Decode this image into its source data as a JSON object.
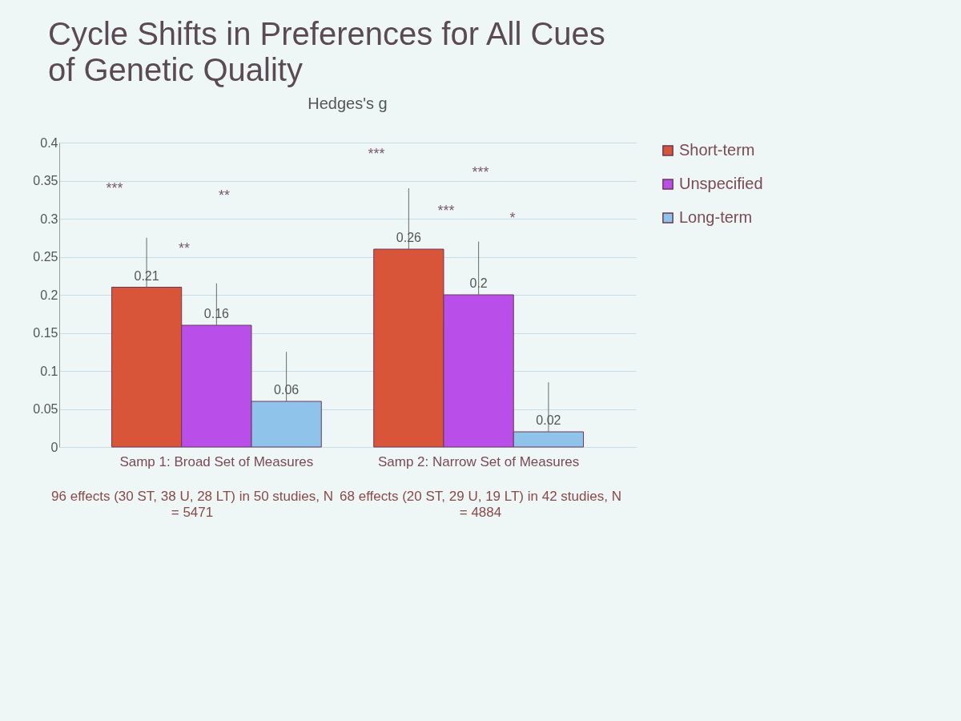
{
  "chart_data": {
    "type": "bar",
    "title": "Cycle Shifts in Preferences for All Cues of Genetic Quality",
    "subtitle": "Hedges's g",
    "categories": [
      "Samp 1: Broad Set of Measures",
      "Samp 2: Narrow Set of Measures"
    ],
    "series": [
      {
        "name": "Short-term",
        "color": "#d9553a",
        "values": [
          0.21,
          0.26
        ],
        "errors": [
          [
            0.21,
            0.275
          ],
          [
            0.26,
            0.34
          ]
        ]
      },
      {
        "name": "Unspecified",
        "color": "#b94ee8",
        "values": [
          0.16,
          0.2
        ],
        "errors": [
          [
            0.16,
            0.215
          ],
          [
            0.2,
            0.27
          ]
        ]
      },
      {
        "name": "Long-term",
        "color": "#8fc3ea",
        "values": [
          0.06,
          0.02
        ],
        "errors": [
          [
            0.06,
            0.125
          ],
          [
            0.02,
            0.085
          ]
        ]
      }
    ],
    "ylim": [
      0,
      0.4
    ],
    "yticks": [
      0,
      0.05,
      0.1,
      0.15,
      0.2,
      0.25,
      0.3,
      0.35,
      0.4
    ],
    "grid": "y",
    "legend": "top right",
    "data_labels": true,
    "annotations": [
      "***",
      "**",
      "**",
      "***",
      "***",
      "***",
      "*",
      "96 effects (30 ST, 38 U, 28 LT) in 50 studies, N = 5471",
      "68 effects (20 ST, 29 U, 19 LT) in 42 studies, N = 4884"
    ]
  }
}
